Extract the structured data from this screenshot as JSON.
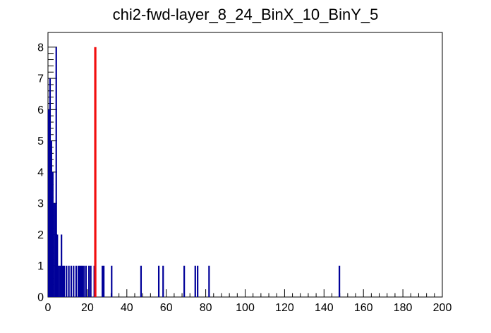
{
  "chart_data": {
    "type": "bar",
    "title": "chi2-fwd-layer_8_24_BinX_10_BinY_5",
    "xlabel": "",
    "ylabel": "",
    "xlim": [
      0,
      200
    ],
    "ylim": [
      0,
      8.47
    ],
    "x_major_ticks": [
      0,
      20,
      40,
      60,
      80,
      100,
      120,
      140,
      160,
      180,
      200
    ],
    "x_minor_tick_step": 4,
    "y_major_ticks": [
      0,
      1,
      2,
      3,
      4,
      5,
      6,
      7,
      8
    ],
    "y_minor_tick_step": 0.2,
    "grid": false,
    "legend": false,
    "bin_width": 0.7,
    "bars": [
      [
        0.35,
        6
      ],
      [
        1.05,
        7
      ],
      [
        1.75,
        5
      ],
      [
        2.45,
        4
      ],
      [
        3.15,
        3
      ],
      [
        3.85,
        3
      ],
      [
        4.2,
        8
      ],
      [
        4.75,
        2
      ],
      [
        5.45,
        1
      ],
      [
        6.15,
        1
      ],
      [
        6.85,
        2
      ],
      [
        7.55,
        1
      ],
      [
        8.25,
        1
      ],
      [
        9.4,
        1
      ],
      [
        10.6,
        1
      ],
      [
        11.8,
        1
      ],
      [
        13.0,
        1
      ],
      [
        14.3,
        1
      ],
      [
        15.4,
        1
      ],
      [
        16.1,
        1
      ],
      [
        16.8,
        1
      ],
      [
        17.5,
        1
      ],
      [
        18.3,
        1
      ],
      [
        19.3,
        1
      ],
      [
        20.8,
        1
      ],
      [
        21.7,
        1
      ],
      [
        23.5,
        1
      ],
      [
        27.6,
        1
      ],
      [
        28.3,
        1
      ],
      [
        32.3,
        1
      ],
      [
        47.2,
        1
      ],
      [
        56.2,
        1
      ],
      [
        58.4,
        1
      ],
      [
        69.1,
        1
      ],
      [
        74.7,
        1
      ],
      [
        75.9,
        1
      ],
      [
        81.7,
        1
      ],
      [
        147.8,
        1
      ]
    ],
    "reference_line": {
      "x": 24,
      "y_bottom": 0,
      "y_top": 8
    },
    "colors": {
      "histogram": "#000099",
      "reference_line": "#f20e0e",
      "axis": "#000000",
      "background": "#ffffff"
    }
  }
}
